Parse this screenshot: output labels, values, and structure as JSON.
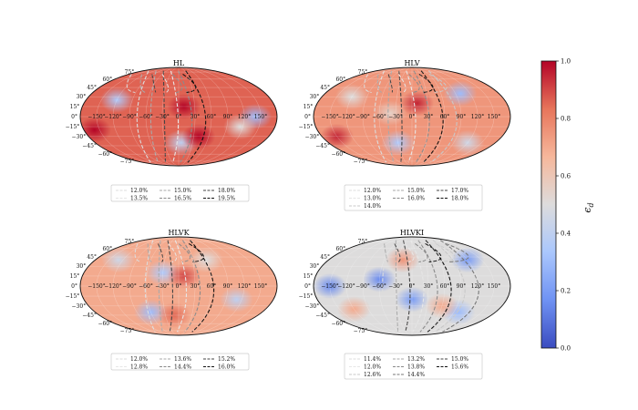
{
  "chart_data": [
    {
      "type": "heatmap",
      "projection": "mollweide",
      "title": "HL",
      "x_ticks": [
        "−150°",
        "−120°",
        "−90°",
        "−60°",
        "−30°",
        "0°",
        "30°",
        "60°",
        "90°",
        "120°",
        "150°"
      ],
      "y_ticks": [
        "75°",
        "60°",
        "45°",
        "30°",
        "15°",
        "0°",
        "−15°",
        "−30°",
        "−45°",
        "−60°",
        "−75°"
      ],
      "mean_value": 0.86,
      "low_spots": [
        {
          "lon": -120,
          "lat": 25,
          "value": 0.35
        },
        {
          "lon": 140,
          "lat": 0,
          "value": 0.3
        },
        {
          "lon": 115,
          "lat": -15,
          "value": 0.5
        },
        {
          "lon": 5,
          "lat": -40,
          "value": 0.4
        }
      ],
      "high_spots": [
        {
          "lon": 10,
          "lat": 15,
          "value": 1.0
        },
        {
          "lon": -160,
          "lat": -20,
          "value": 1.0
        },
        {
          "lon": 40,
          "lat": -30,
          "value": 1.0
        }
      ],
      "contours": {
        "levels": [
          "12.0%",
          "15.0%",
          "18.0%",
          "13.5%",
          "16.5%",
          "19.5%"
        ]
      },
      "legend": {
        "entries": [
          "12.0%",
          "15.0%",
          "18.0%",
          "13.5%",
          "16.5%",
          "19.5%"
        ]
      }
    },
    {
      "type": "heatmap",
      "projection": "mollweide",
      "title": "HLV",
      "x_ticks": [
        "−150°",
        "−120°",
        "−90°",
        "−60°",
        "−30°",
        "0°",
        "30°",
        "60°",
        "90°",
        "120°",
        "150°"
      ],
      "y_ticks": [
        "75°",
        "60°",
        "45°",
        "30°",
        "15°",
        "0°",
        "−15°",
        "−30°",
        "−45°",
        "−60°",
        "−75°"
      ],
      "mean_value": 0.75,
      "low_spots": [
        {
          "lon": -30,
          "lat": -40,
          "value": 0.35
        },
        {
          "lon": 100,
          "lat": 35,
          "value": 0.3
        },
        {
          "lon": -120,
          "lat": 30,
          "value": 0.5
        },
        {
          "lon": 120,
          "lat": -40,
          "value": 0.45
        },
        {
          "lon": -40,
          "lat": 5,
          "value": 0.55
        }
      ],
      "high_spots": [
        {
          "lon": -150,
          "lat": -30,
          "value": 0.95
        },
        {
          "lon": 10,
          "lat": 20,
          "value": 0.95
        }
      ],
      "contours": {
        "levels": [
          "12.0%",
          "15.0%",
          "17.0%",
          "13.0%",
          "16.0%",
          "18.0%",
          "14.0%"
        ]
      },
      "legend": {
        "entries": [
          "12.0%",
          "15.0%",
          "17.0%",
          "13.0%",
          "16.0%",
          "18.0%",
          "14.0%"
        ]
      }
    },
    {
      "type": "heatmap",
      "projection": "mollweide",
      "title": "HLVK",
      "x_ticks": [
        "−150°",
        "−120°",
        "−90°",
        "−60°",
        "−30°",
        "0°",
        "30°",
        "60°",
        "90°",
        "120°",
        "150°"
      ],
      "y_ticks": [
        "75°",
        "60°",
        "45°",
        "30°",
        "15°",
        "0°",
        "−15°",
        "−30°",
        "−45°",
        "−60°",
        "−75°"
      ],
      "mean_value": 0.7,
      "low_spots": [
        {
          "lon": -60,
          "lat": -40,
          "value": 0.3
        },
        {
          "lon": -30,
          "lat": 20,
          "value": 0.35
        },
        {
          "lon": 110,
          "lat": -20,
          "value": 0.4
        },
        {
          "lon": -130,
          "lat": 40,
          "value": 0.45
        },
        {
          "lon": 60,
          "lat": 40,
          "value": 0.5
        }
      ],
      "high_spots": [
        {
          "lon": 10,
          "lat": 15,
          "value": 0.9
        },
        {
          "lon": -10,
          "lat": -45,
          "value": 0.85
        }
      ],
      "contours": {
        "levels": [
          "12.0%",
          "13.6%",
          "15.2%",
          "12.8%",
          "14.4%",
          "16.0%"
        ]
      },
      "legend": {
        "entries": [
          "12.0%",
          "13.6%",
          "15.2%",
          "12.8%",
          "14.4%",
          "16.0%"
        ]
      }
    },
    {
      "type": "heatmap",
      "projection": "mollweide",
      "title": "HLVKI",
      "x_ticks": [
        "−150°",
        "−120°",
        "−90°",
        "−60°",
        "−30°",
        "0°",
        "30°",
        "60°",
        "90°",
        "120°",
        "150°"
      ],
      "y_ticks": [
        "75°",
        "60°",
        "45°",
        "30°",
        "15°",
        "0°",
        "−15°",
        "−30°",
        "−45°",
        "−60°",
        "−75°"
      ],
      "mean_value": 0.5,
      "low_spots": [
        {
          "lon": -150,
          "lat": 0,
          "value": 0.15
        },
        {
          "lon": -60,
          "lat": 10,
          "value": 0.15
        },
        {
          "lon": 0,
          "lat": -20,
          "value": 0.2
        },
        {
          "lon": 120,
          "lat": 40,
          "value": 0.2
        },
        {
          "lon": 100,
          "lat": -40,
          "value": 0.3
        }
      ],
      "high_spots": [
        {
          "lon": -20,
          "lat": 40,
          "value": 0.75
        },
        {
          "lon": 60,
          "lat": -30,
          "value": 0.7
        },
        {
          "lon": -120,
          "lat": -35,
          "value": 0.7
        }
      ],
      "contours": {
        "levels": [
          "11.4%",
          "13.2%",
          "15.0%",
          "12.0%",
          "13.8%",
          "15.6%",
          "12.6%",
          "14.4%"
        ]
      },
      "legend": {
        "entries": [
          "11.4%",
          "13.2%",
          "15.0%",
          "12.0%",
          "13.8%",
          "15.6%",
          "12.6%",
          "14.4%"
        ]
      }
    }
  ],
  "colorbar": {
    "label": "ϵ",
    "label_sub": "d",
    "range": [
      0,
      1
    ],
    "ticks": [
      "0.0",
      "0.2",
      "0.4",
      "0.6",
      "0.8",
      "1.0"
    ],
    "tick_values": [
      0,
      0.2,
      0.4,
      0.6,
      0.8,
      1.0
    ],
    "colormap": [
      "#3b4cc0",
      "#6f92f3",
      "#aac7fd",
      "#dddcdc",
      "#f6b79b",
      "#e7755b",
      "#b40426"
    ]
  }
}
